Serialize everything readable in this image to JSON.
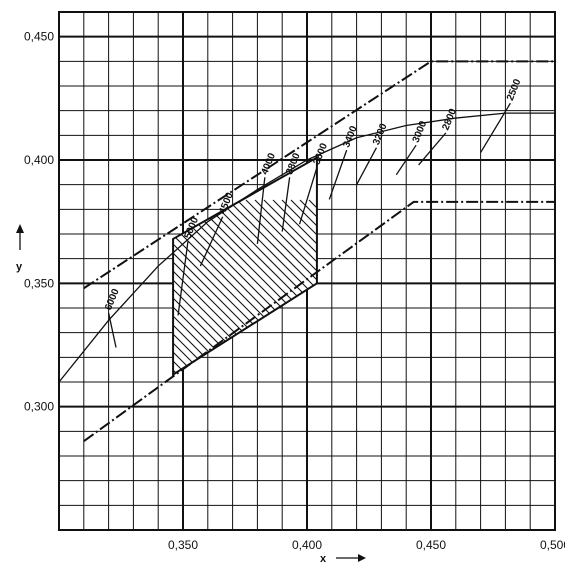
{
  "chart_data": {
    "type": "line",
    "title": "",
    "xlabel": "x",
    "ylabel": "y",
    "xlim": [
      0.3,
      0.5
    ],
    "ylim": [
      0.25,
      0.46
    ],
    "x_ticks": [
      {
        "value": 0.35,
        "label": "0,350"
      },
      {
        "value": 0.4,
        "label": "0,400"
      },
      {
        "value": 0.45,
        "label": "0,450"
      },
      {
        "value": 0.5,
        "label": "0,500"
      }
    ],
    "y_ticks": [
      {
        "value": 0.3,
        "label": "0,300"
      },
      {
        "value": 0.35,
        "label": "0,350"
      },
      {
        "value": 0.4,
        "label": "0,400"
      },
      {
        "value": 0.45,
        "label": "0,450"
      }
    ],
    "grid": true,
    "planckian_locus": {
      "x": [
        0.3,
        0.32,
        0.34,
        0.36,
        0.38,
        0.4,
        0.42,
        0.44,
        0.46,
        0.48,
        0.5
      ],
      "y": [
        0.31,
        0.335,
        0.357,
        0.375,
        0.388,
        0.4,
        0.409,
        0.414,
        0.417,
        0.419,
        0.419
      ]
    },
    "upper_boundary": {
      "style": "dash-dot",
      "x": [
        0.31,
        0.45,
        0.5
      ],
      "y": [
        0.348,
        0.44,
        0.44
      ]
    },
    "lower_boundary": {
      "style": "dash-dot",
      "x": [
        0.31,
        0.443,
        0.5
      ],
      "y": [
        0.286,
        0.383,
        0.383
      ]
    },
    "hatched_region": {
      "polygon": [
        [
          0.346,
          0.368
        ],
        [
          0.404,
          0.401
        ],
        [
          0.404,
          0.35
        ],
        [
          0.346,
          0.313
        ]
      ]
    },
    "isotemperature_lines": [
      {
        "label": "6000",
        "value": 6000,
        "from": [
          0.323,
          0.324
        ],
        "to": [
          0.32,
          0.338
        ]
      },
      {
        "label": "5000",
        "value": 5000,
        "from": [
          0.348,
          0.337
        ],
        "to": [
          0.352,
          0.367
        ]
      },
      {
        "label": "4500",
        "value": 4500,
        "from": [
          0.357,
          0.357
        ],
        "to": [
          0.366,
          0.377
        ]
      },
      {
        "label": "4000",
        "value": 4000,
        "from": [
          0.38,
          0.366
        ],
        "to": [
          0.383,
          0.393
        ]
      },
      {
        "label": "3800",
        "value": 3800,
        "from": [
          0.39,
          0.371
        ],
        "to": [
          0.393,
          0.393
        ]
      },
      {
        "label": "3600",
        "value": 3600,
        "from": [
          0.397,
          0.374
        ],
        "to": [
          0.404,
          0.397
        ]
      },
      {
        "label": "3400",
        "value": 3400,
        "from": [
          0.409,
          0.384
        ],
        "to": [
          0.416,
          0.404
        ]
      },
      {
        "label": "3200",
        "value": 3200,
        "from": [
          0.42,
          0.39
        ],
        "to": [
          0.428,
          0.405
        ]
      },
      {
        "label": "3000",
        "value": 3000,
        "from": [
          0.436,
          0.394
        ],
        "to": [
          0.444,
          0.406
        ]
      },
      {
        "label": "2800",
        "value": 2800,
        "from": [
          0.445,
          0.398
        ],
        "to": [
          0.456,
          0.411
        ]
      },
      {
        "label": "2500",
        "value": 2500,
        "from": [
          0.47,
          0.403
        ],
        "to": [
          0.482,
          0.423
        ]
      }
    ]
  }
}
